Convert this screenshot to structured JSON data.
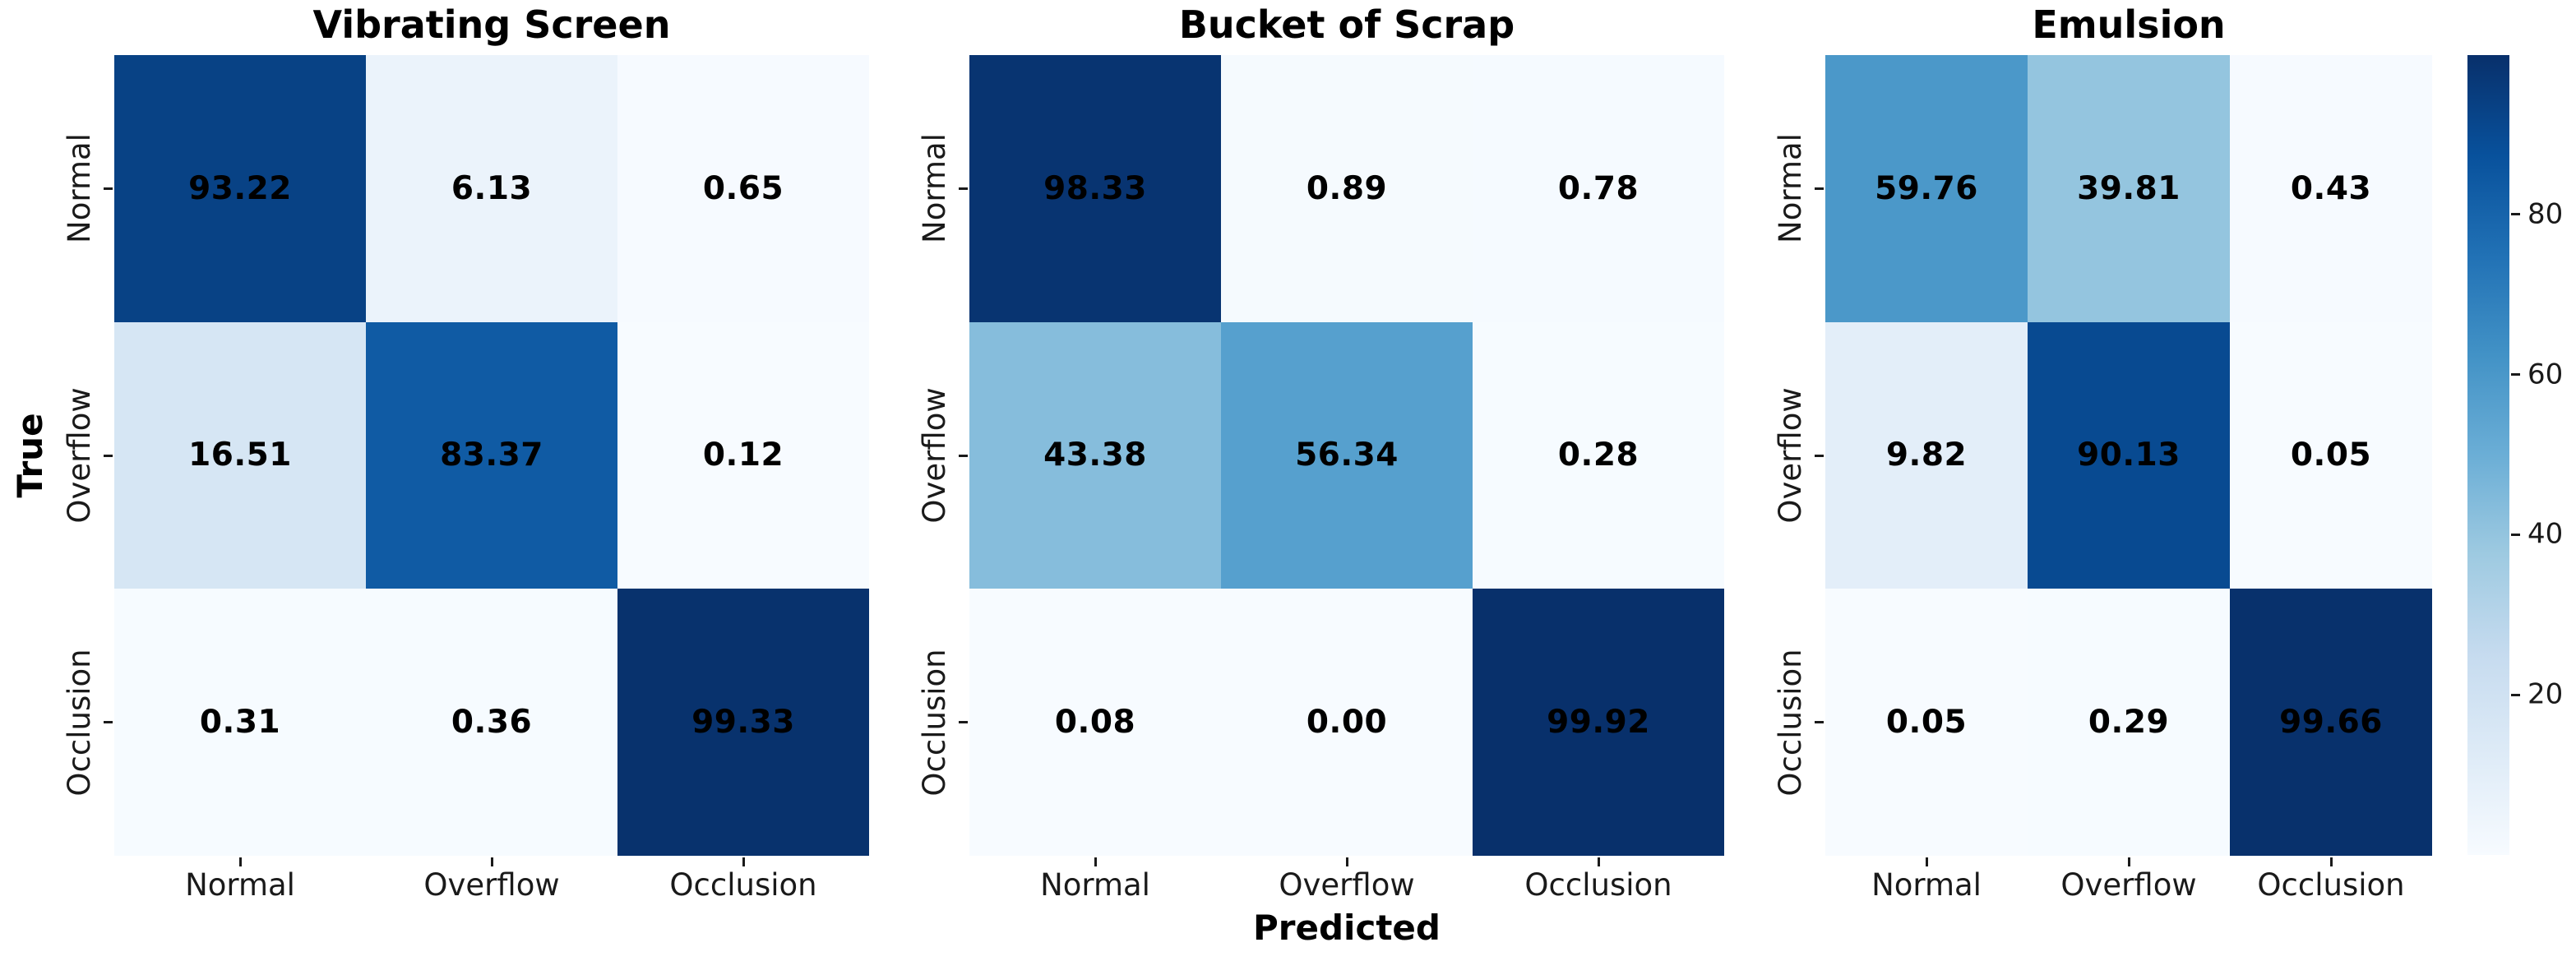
{
  "figure": {
    "xlabel": "Predicted",
    "ylabel": "True",
    "categories": [
      "Normal",
      "Overflow",
      "Occlusion"
    ],
    "colorbar": {
      "colormap": "Blues",
      "vmin": 0.0,
      "vmax": 99.92,
      "ticks": [
        20,
        40,
        60,
        80
      ]
    },
    "colors": {
      "cmap_min": "#f7fbff",
      "cmap_max": "#08306b",
      "annotation": "#000000",
      "tick_text": "#1a1a1a"
    }
  },
  "chart_data": [
    {
      "type": "heatmap",
      "title": "Vibrating Screen",
      "x": [
        "Normal",
        "Overflow",
        "Occlusion"
      ],
      "y": [
        "Normal",
        "Overflow",
        "Occlusion"
      ],
      "xlabel": "Predicted",
      "ylabel": "True",
      "values": [
        [
          93.22,
          6.13,
          0.65
        ],
        [
          16.51,
          83.37,
          0.12
        ],
        [
          0.31,
          0.36,
          99.33
        ]
      ]
    },
    {
      "type": "heatmap",
      "title": "Bucket of Scrap",
      "x": [
        "Normal",
        "Overflow",
        "Occlusion"
      ],
      "y": [
        "Normal",
        "Overflow",
        "Occlusion"
      ],
      "values": [
        [
          98.33,
          0.89,
          0.78
        ],
        [
          43.38,
          56.34,
          0.28
        ],
        [
          0.08,
          0.0,
          99.92
        ]
      ]
    },
    {
      "type": "heatmap",
      "title": "Emulsion",
      "x": [
        "Normal",
        "Overflow",
        "Occlusion"
      ],
      "y": [
        "Normal",
        "Overflow",
        "Occlusion"
      ],
      "values": [
        [
          59.76,
          39.81,
          0.43
        ],
        [
          9.82,
          90.13,
          0.05
        ],
        [
          0.05,
          0.29,
          99.66
        ]
      ]
    }
  ]
}
